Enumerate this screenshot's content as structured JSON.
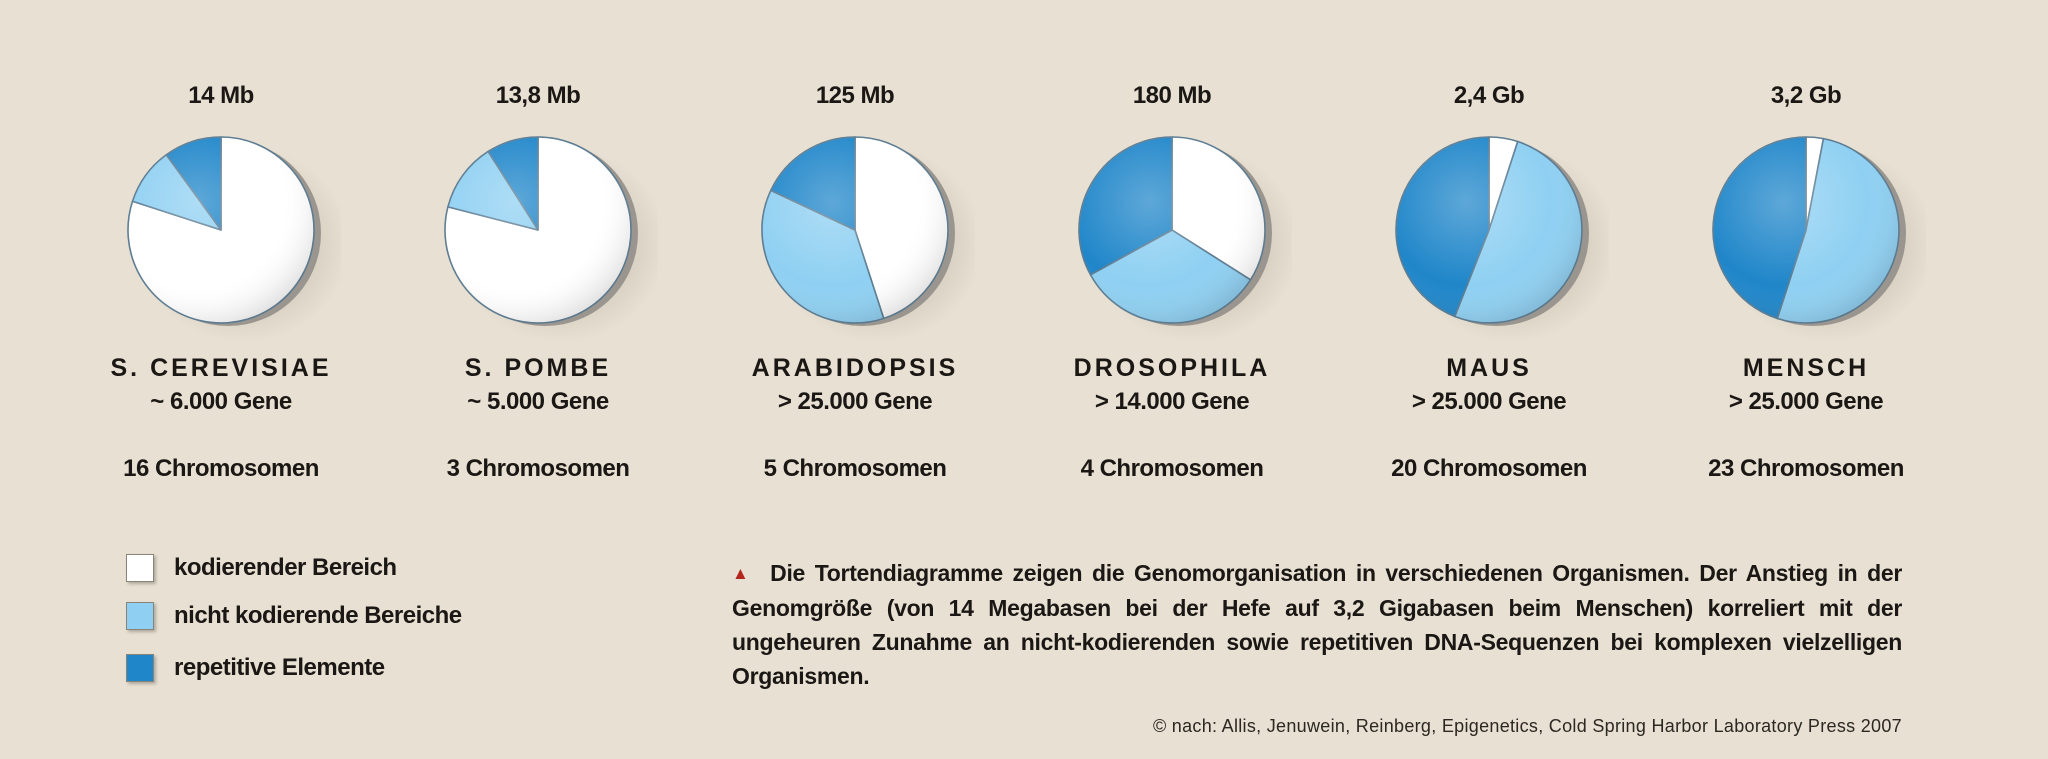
{
  "chart_data": {
    "type": "pie",
    "categories": [
      "kodierender Bereich",
      "nicht kodierende Bereiche",
      "repetitive Elemente"
    ],
    "colors": [
      "#ffffff",
      "#8fd0f2",
      "#1f86c9"
    ],
    "charts": [
      {
        "size_label": "14 Mb",
        "organism": "S. CEREVISIAE",
        "genes": "~ 6.000 Gene",
        "chromosomes": "16 Chromosomen",
        "values": [
          80,
          10,
          10
        ]
      },
      {
        "size_label": "13,8 Mb",
        "organism": "S. POMBE",
        "genes": "~ 5.000 Gene",
        "chromosomes": "3 Chromosomen",
        "values": [
          79,
          12,
          9
        ]
      },
      {
        "size_label": "125 Mb",
        "organism": "ARABIDOPSIS",
        "genes": "> 25.000 Gene",
        "chromosomes": "5 Chromosomen",
        "values": [
          45,
          37,
          18
        ]
      },
      {
        "size_label": "180 Mb",
        "organism": "DROSOPHILA",
        "genes": "> 14.000 Gene",
        "chromosomes": "4 Chromosomen",
        "values": [
          34,
          33,
          33
        ]
      },
      {
        "size_label": "2,4 Gb",
        "organism": "MAUS",
        "genes": "> 25.000 Gene",
        "chromosomes": "20 Chromosomen",
        "values": [
          5,
          51,
          44
        ]
      },
      {
        "size_label": "3,2 Gb",
        "organism": "MENSCH",
        "genes": "> 25.000 Gene",
        "chromosomes": "23 Chromosomen",
        "values": [
          3,
          52,
          45
        ]
      }
    ]
  },
  "legend": [
    {
      "label": "kodierender Bereich",
      "color": "#ffffff"
    },
    {
      "label": "nicht kodierende Bereiche",
      "color": "#8fd0f2"
    },
    {
      "label": "repetitive Elemente",
      "color": "#1f86c9"
    }
  ],
  "caption": {
    "marker": "▲",
    "text": "Die Tortendiagramme zeigen die Genomorganisation in verschiedenen Organismen. Der Anstieg in der Genomgröße (von 14 Megabasen bei der Hefe auf 3,2 Gigabasen beim Menschen) korreliert mit der ungeheuren Zunahme an nicht-kodierenden sowie repetitiven DNA-Sequenzen bei komplexen vielzelligen Organismen."
  },
  "credit": "© nach: Allis, Jenuwein, Reinberg, Epigenetics, Cold Spring Harbor Laboratory Press 2007"
}
